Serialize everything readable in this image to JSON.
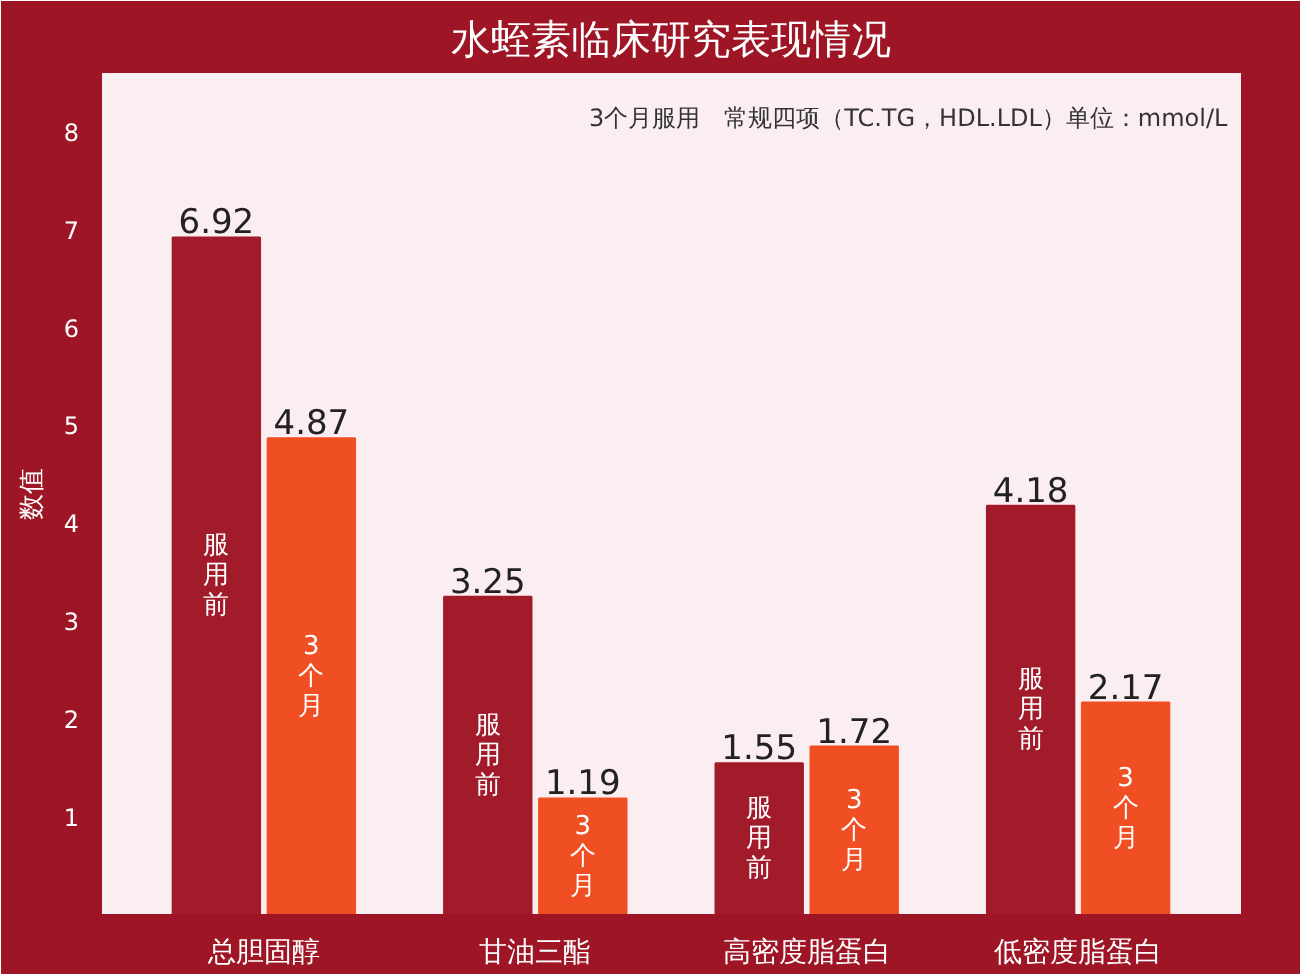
{
  "chart_data": {
    "type": "bar",
    "title": "水蛭素临床研究表现情况",
    "subtitle": "3个月服用　常规四项（TC.TG，HDL.LDL）单位：mmol/L",
    "ylabel": "数值",
    "categories": [
      "总胆固醇",
      "甘油三酯",
      "高密度脂蛋白",
      "低密度脂蛋白"
    ],
    "series": [
      {
        "name": "服用前",
        "color": "#a11b2b",
        "values": [
          6.92,
          3.25,
          1.55,
          4.18
        ]
      },
      {
        "name": "3个月",
        "color": "#f04e23",
        "values": [
          4.87,
          1.19,
          1.72,
          2.17
        ]
      }
    ],
    "ylim": [
      0,
      8.6
    ],
    "yticks": [
      1,
      2,
      3,
      4,
      5,
      6,
      7,
      8
    ],
    "grid": false,
    "legend": false,
    "data_labels": true
  }
}
